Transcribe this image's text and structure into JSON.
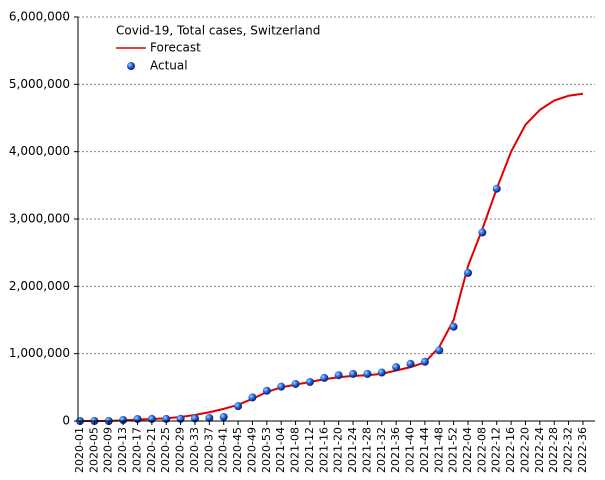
{
  "chart_data": {
    "type": "line",
    "title": "Covid-19, Total cases, Switzerland",
    "categories": [
      "2020-01",
      "2020-05",
      "2020-09",
      "2020-13",
      "2020-17",
      "2020-21",
      "2020-25",
      "2020-29",
      "2020-33",
      "2020-37",
      "2020-41",
      "2020-45",
      "2020-49",
      "2020-53",
      "2021-04",
      "2021-08",
      "2021-12",
      "2021-16",
      "2021-20",
      "2021-24",
      "2021-28",
      "2021-32",
      "2021-36",
      "2021-40",
      "2021-44",
      "2021-48",
      "2021-52",
      "2022-04",
      "2022-08",
      "2022-12",
      "2022-16",
      "2022-20",
      "2022-24",
      "2022-28",
      "2022-32",
      "2022-36"
    ],
    "series": [
      {
        "name": "Forecast",
        "color": "#e00000",
        "values": [
          0,
          0,
          0,
          10000,
          20000,
          30000,
          40000,
          60000,
          90000,
          130000,
          180000,
          240000,
          330000,
          430000,
          500000,
          540000,
          580000,
          620000,
          650000,
          670000,
          680000,
          700000,
          750000,
          800000,
          870000,
          1100000,
          1500000,
          2300000,
          2850000,
          3450000,
          4000000,
          4400000,
          4620000,
          4760000,
          4830000,
          4860000
        ]
      },
      {
        "name": "Actual",
        "color": "#1f5fd6",
        "values": [
          0,
          0,
          0,
          15000,
          30000,
          31000,
          31000,
          33000,
          38000,
          45000,
          60000,
          220000,
          350000,
          450000,
          510000,
          550000,
          580000,
          640000,
          680000,
          700000,
          700000,
          720000,
          800000,
          850000,
          880000,
          1050000,
          1400000,
          2200000,
          2800000,
          3450000,
          null,
          null,
          null,
          null,
          null,
          null
        ]
      }
    ],
    "ylim": [
      0,
      6000000
    ],
    "yticks": [
      {
        "value": 0,
        "label": "0"
      },
      {
        "value": 1000000,
        "label": "1,000,000"
      },
      {
        "value": 2000000,
        "label": "2,000,000"
      },
      {
        "value": 3000000,
        "label": "3,000,000"
      },
      {
        "value": 4000000,
        "label": "4,000,000"
      },
      {
        "value": 5000000,
        "label": "5,000,000"
      },
      {
        "value": 6000000,
        "label": "6,000,000"
      }
    ],
    "grid": true
  }
}
